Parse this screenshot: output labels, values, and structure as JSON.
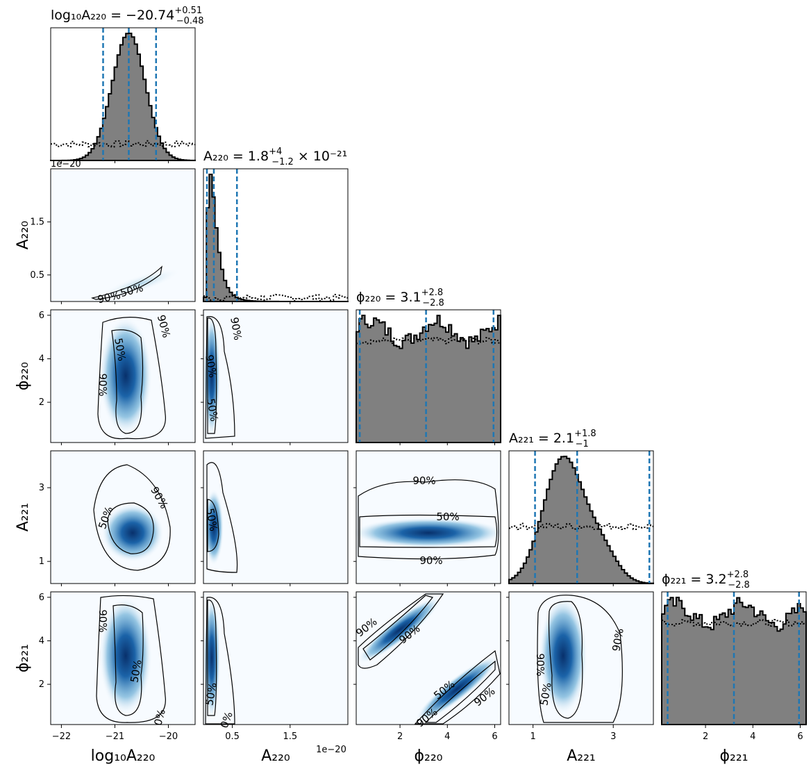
{
  "chart_data": {
    "type": "corner",
    "parameters": [
      {
        "key": "logA220",
        "label": "log₁₀A₂₂₀",
        "range": [
          -22.2,
          -19.5
        ],
        "ticks": [
          -22,
          -21,
          -20
        ],
        "tick_labels": [
          "−22",
          "−21",
          "−20"
        ],
        "title": {
          "label": "log₁₀A₂₂₀",
          "value": "−20.74",
          "plus": "+0.51",
          "minus": "−0.48",
          "suffix": ""
        },
        "quantiles": [
          -21.22,
          -20.74,
          -20.23
        ],
        "median": -20.74,
        "spread": 0.31,
        "prior_level": 0.13
      },
      {
        "key": "A220",
        "label": "A₂₂₀",
        "range": [
          0.0,
          2.5
        ],
        "ticks": [
          0.5,
          1.5
        ],
        "tick_labels": [
          "0.5",
          "1.5"
        ],
        "tick_scale": "1e−20",
        "title": {
          "label": "A₂₂₀",
          "value": "1.8",
          "plus": "+4",
          "minus": "−1.2",
          "suffix": " × 10⁻²¹"
        },
        "quantiles": [
          0.06,
          0.18,
          0.58
        ],
        "median": 0.18,
        "spread": 0.1,
        "prior_level": 0.03
      },
      {
        "key": "phi220",
        "label": "ϕ₂₂₀",
        "range": [
          0.15,
          6.25
        ],
        "ticks": [
          2,
          4,
          6
        ],
        "tick_labels": [
          "2",
          "4",
          "6"
        ],
        "title": {
          "label": "ϕ₂₂₀",
          "value": "3.1",
          "plus": "+2.8",
          "minus": "−2.8",
          "suffix": ""
        },
        "quantiles": [
          0.3,
          3.1,
          5.95
        ],
        "median": 3.1,
        "spread": 0,
        "prior_level": 0.8
      },
      {
        "key": "A221",
        "label": "A₂₂₁",
        "range": [
          0.4,
          4.0
        ],
        "ticks": [
          1,
          3
        ],
        "tick_labels": [
          "1",
          "3"
        ],
        "title": {
          "label": "A₂₂₁",
          "value": "2.1",
          "plus": "+1.8",
          "minus": "−1",
          "suffix": ""
        },
        "quantiles": [
          1.05,
          2.1,
          3.9
        ],
        "median": 2.1,
        "spread": 0.5,
        "prior_level": 0.45
      },
      {
        "key": "phi221",
        "label": "ϕ₂₂₁",
        "range": [
          0.15,
          6.25
        ],
        "ticks": [
          2,
          4,
          6
        ],
        "tick_labels": [
          "2",
          "4",
          "6"
        ],
        "title": {
          "label": "ϕ₂₂₁",
          "value": "3.2",
          "plus": "+2.8",
          "minus": "−2.8",
          "suffix": ""
        },
        "quantiles": [
          0.4,
          3.2,
          5.95
        ],
        "median": 3.2,
        "spread": 0,
        "prior_level": 0.8
      }
    ],
    "pairs_2d": [
      {
        "row": 1,
        "col": 0,
        "contours": [
          "90%",
          "50%"
        ]
      },
      {
        "row": 2,
        "col": 0,
        "contours": [
          "90%",
          "50%",
          "90%"
        ]
      },
      {
        "row": 2,
        "col": 1,
        "contours": [
          "90%",
          "50%",
          "90%"
        ]
      },
      {
        "row": 3,
        "col": 0,
        "contours": [
          "50%",
          "90%"
        ]
      },
      {
        "row": 3,
        "col": 1,
        "contours": [
          "50%"
        ]
      },
      {
        "row": 3,
        "col": 2,
        "contours": [
          "90%",
          "50%",
          "90%"
        ]
      },
      {
        "row": 4,
        "col": 0,
        "contours": [
          "90%",
          "50%",
          "0%"
        ]
      },
      {
        "row": 4,
        "col": 1,
        "contours": [
          "50%",
          "0%"
        ]
      },
      {
        "row": 4,
        "col": 2,
        "contours": [
          "90%",
          "90%",
          "50%",
          "90%",
          "90%"
        ]
      },
      {
        "row": 4,
        "col": 3,
        "contours": [
          "90%",
          "50%",
          "90%"
        ]
      }
    ],
    "colors": {
      "hist_fill": "#808080",
      "hist_edge": "#000000",
      "quantile_line": "#1f77b4",
      "density_dark": "#08306b",
      "density_light": "#f7fbff"
    }
  }
}
